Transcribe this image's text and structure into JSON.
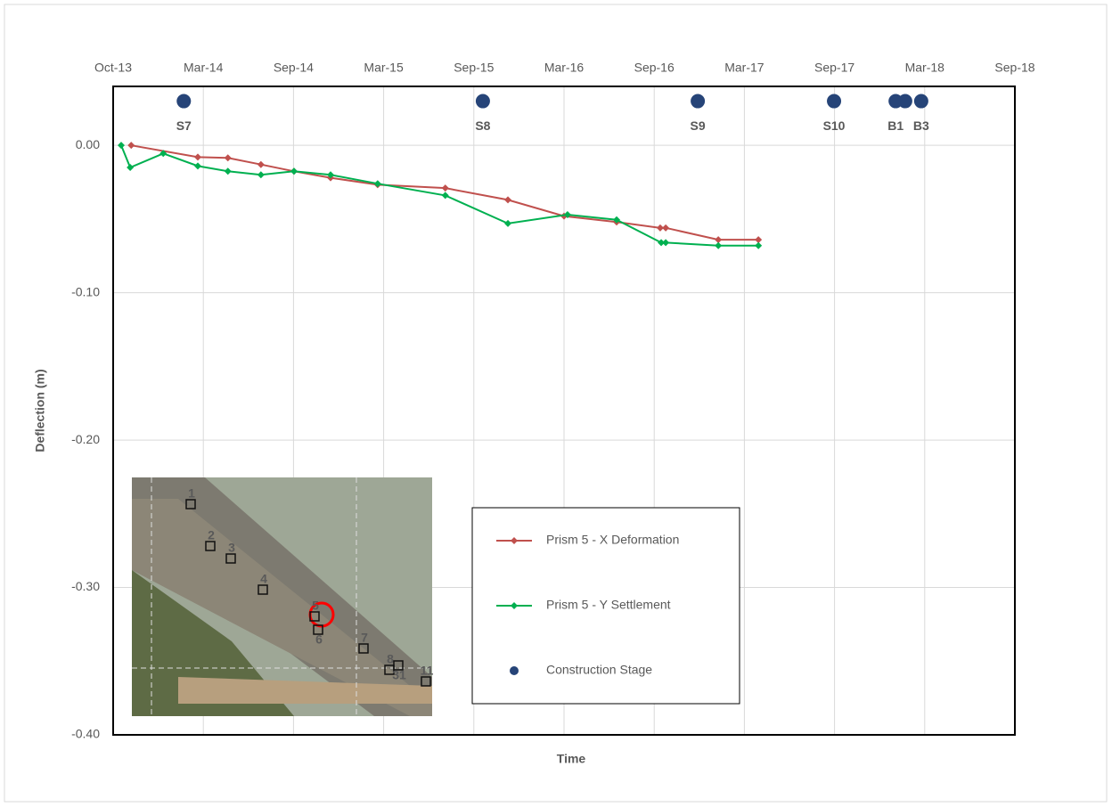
{
  "chart_data": {
    "type": "line",
    "x_label": "Time",
    "y_label": "Deflection (m)",
    "xlim": [
      41548,
      43348
    ],
    "xticks": [
      {
        "value": 41548,
        "label": "Oct-13"
      },
      {
        "value": 41728,
        "label": "Mar-14"
      },
      {
        "value": 41908,
        "label": "Sep-14"
      },
      {
        "value": 42088,
        "label": "Mar-15"
      },
      {
        "value": 42268,
        "label": "Sep-15"
      },
      {
        "value": 42448,
        "label": "Mar-16"
      },
      {
        "value": 42628,
        "label": "Sep-16"
      },
      {
        "value": 42808,
        "label": "Mar-17"
      },
      {
        "value": 42988,
        "label": "Sep-17"
      },
      {
        "value": 43168,
        "label": "Mar-18"
      },
      {
        "value": 43348,
        "label": "Sep-18"
      }
    ],
    "ylim": [
      -0.4,
      0.04
    ],
    "yticks": [
      {
        "value": -0.4,
        "label": "-0.40"
      },
      {
        "value": -0.3,
        "label": "-0.30"
      },
      {
        "value": -0.2,
        "label": "-0.20"
      },
      {
        "value": -0.1,
        "label": "-0.10"
      },
      {
        "value": 0,
        "label": "0.00"
      }
    ],
    "grid": true,
    "series": [
      {
        "name": "Prism 5 - X Deformation",
        "color": "#c0504d",
        "marker": "diamond",
        "x": [
          41584,
          41717,
          41777,
          41843,
          41909,
          41982,
          42076,
          42211,
          42336,
          42448,
          42553,
          42640,
          42651,
          42756,
          42836
        ],
        "values": [
          0,
          -0.008,
          -0.0085,
          -0.013,
          -0.0176,
          -0.022,
          -0.0267,
          -0.029,
          -0.037,
          -0.048,
          -0.052,
          -0.056,
          -0.056,
          -0.064,
          -0.064
        ]
      },
      {
        "name": "Prism 5 - Y Settlement",
        "color": "#00b050",
        "marker": "diamond",
        "x": [
          41564,
          41582,
          41648,
          41717,
          41777,
          41843,
          41909,
          41982,
          42076,
          42211,
          42336,
          42455,
          42553,
          42642,
          42651,
          42756,
          42836
        ],
        "values": [
          0,
          -0.015,
          -0.0055,
          -0.014,
          -0.0176,
          -0.02,
          -0.0176,
          -0.02,
          -0.026,
          -0.034,
          -0.053,
          -0.047,
          -0.0505,
          -0.066,
          -0.066,
          -0.068,
          -0.068
        ]
      },
      {
        "name": "Construction Stage",
        "color": "#264478",
        "marker": "circle",
        "line": false,
        "x": [
          41689,
          42286,
          42715,
          42987,
          43110,
          43129,
          43161
        ],
        "values": [
          0.03,
          0.03,
          0.03,
          0.03,
          0.03,
          0.03,
          0.03
        ],
        "labels": [
          "S7",
          "S8",
          "S9",
          "S10",
          "B1",
          null,
          "B3"
        ]
      }
    ],
    "inset_labels": [
      "1",
      "2",
      "3",
      "4",
      "5",
      "6",
      "7",
      "8",
      "31",
      "11"
    ]
  }
}
